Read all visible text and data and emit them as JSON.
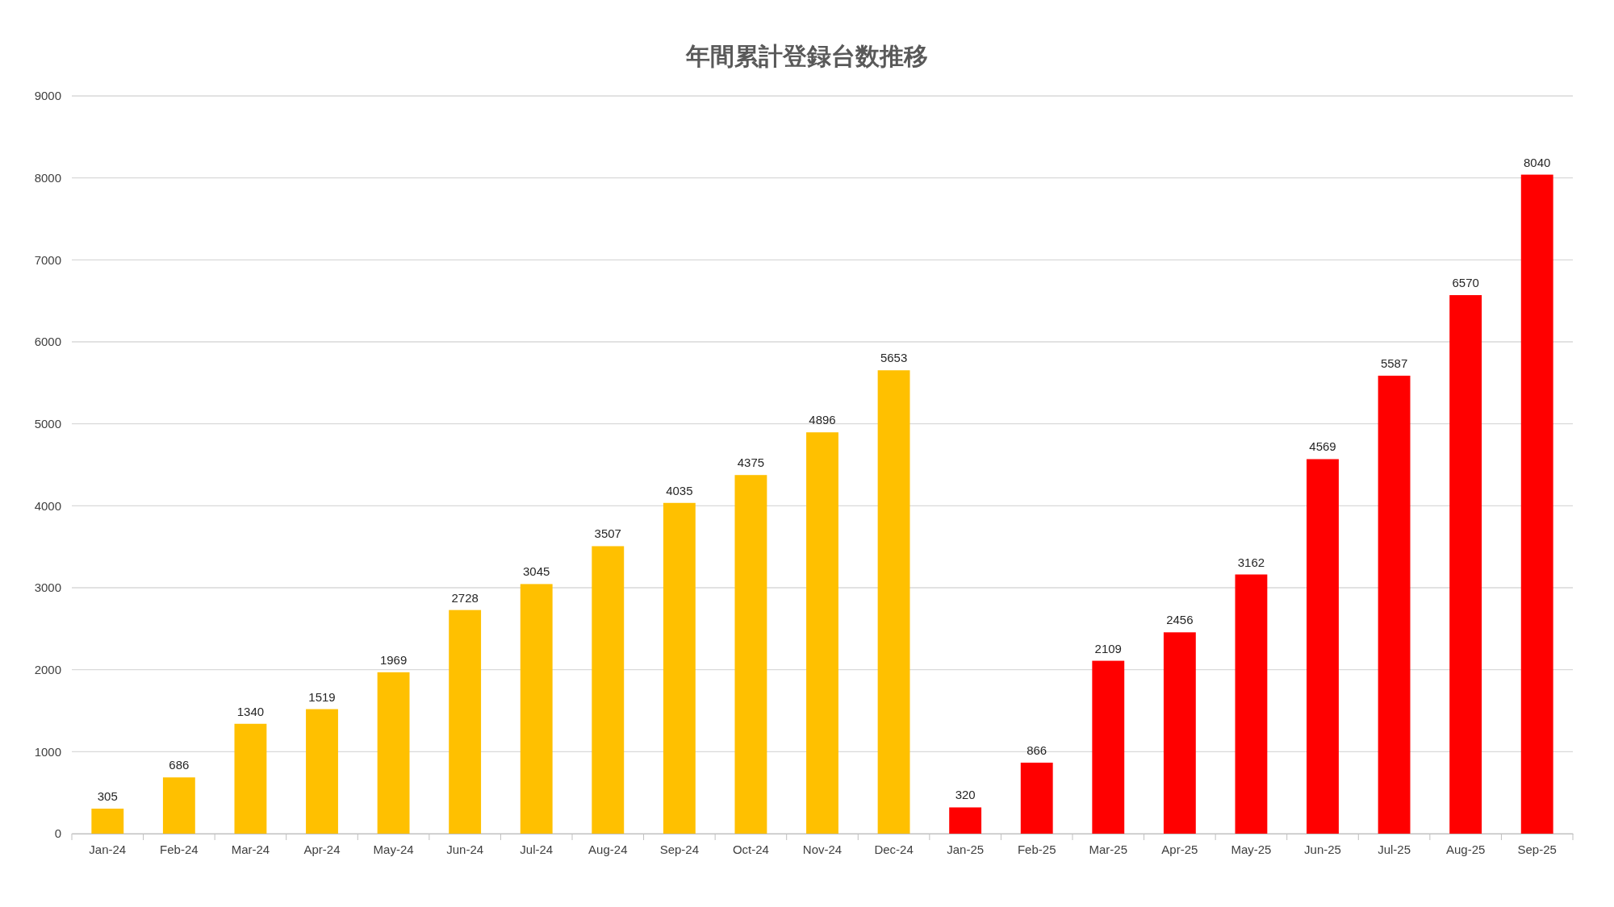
{
  "chart_data": {
    "type": "bar",
    "title": "年間累計登録台数推移",
    "categories": [
      "Jan-24",
      "Feb-24",
      "Mar-24",
      "Apr-24",
      "May-24",
      "Jun-24",
      "Jul-24",
      "Aug-24",
      "Sep-24",
      "Oct-24",
      "Nov-24",
      "Dec-24",
      "Jan-25",
      "Feb-25",
      "Mar-25",
      "Apr-25",
      "May-25",
      "Jun-25",
      "Jul-25",
      "Aug-25",
      "Sep-25"
    ],
    "values": [
      305,
      686,
      1340,
      1519,
      1969,
      2728,
      3045,
      3507,
      4035,
      4375,
      4896,
      5653,
      320,
      866,
      2109,
      2456,
      3162,
      4569,
      5587,
      6570,
      8040
    ],
    "colors": [
      "#ffc000",
      "#ffc000",
      "#ffc000",
      "#ffc000",
      "#ffc000",
      "#ffc000",
      "#ffc000",
      "#ffc000",
      "#ffc000",
      "#ffc000",
      "#ffc000",
      "#ffc000",
      "#ff0000",
      "#ff0000",
      "#ff0000",
      "#ff0000",
      "#ff0000",
      "#ff0000",
      "#ff0000",
      "#ff0000",
      "#ff0000"
    ],
    "ylim": [
      0,
      9000
    ],
    "yticks": [
      0,
      1000,
      2000,
      3000,
      4000,
      5000,
      6000,
      7000,
      8000,
      9000
    ],
    "grid": "y",
    "data_labels": true
  }
}
